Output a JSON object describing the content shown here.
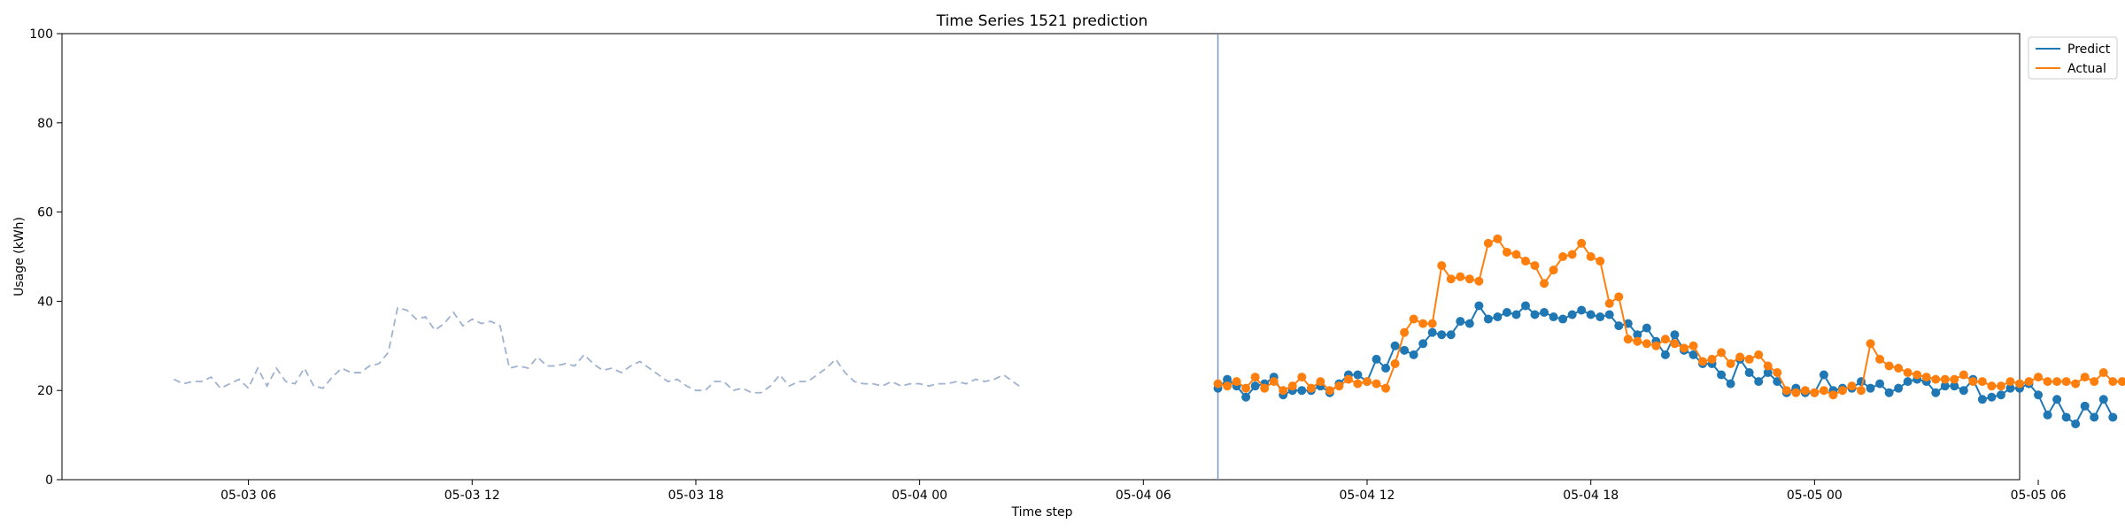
{
  "chart_data": {
    "type": "line",
    "title": "Time Series 1521 prediction",
    "xlabel": "Time step",
    "ylabel": "Usage (kWh)",
    "ylim": [
      0,
      100
    ],
    "yticks": [
      0,
      20,
      40,
      60,
      80,
      100
    ],
    "xticks": [
      "05-03 06",
      "05-03 12",
      "05-03 18",
      "05-04 00",
      "05-04 06",
      "05-04 12",
      "05-04 18",
      "05-05 00",
      "05-05 06"
    ],
    "xlim_hours": [
      -3.0,
      49.5
    ],
    "grid": false,
    "legend_position": "top-right",
    "forecast_start_hour": 28.0,
    "history": {
      "color": "#9fb2d0",
      "style": "dashed",
      "start_hour": 0,
      "step_hours": 0.25,
      "values": [
        22.5,
        21.5,
        22,
        22,
        23,
        20.5,
        21.5,
        22.5,
        20.5,
        25,
        21,
        25,
        22,
        21.5,
        25,
        21,
        20.5,
        23,
        25,
        24,
        24,
        25.5,
        26,
        28.5,
        38.5,
        38,
        36,
        36.5,
        33.5,
        35,
        37.5,
        34.5,
        36,
        35,
        35.5,
        34.5,
        25,
        25.5,
        25,
        27.5,
        25.5,
        25.5,
        26,
        25.5,
        28,
        26,
        24.5,
        25,
        24,
        25.5,
        26.5,
        25,
        23.5,
        22,
        22.5,
        21,
        20,
        20,
        22,
        22,
        20,
        20.5,
        19.5,
        19.5,
        21,
        23.5,
        21,
        22,
        22,
        23.5,
        25,
        27,
        24,
        22,
        21.5,
        21.5,
        21,
        22,
        21,
        21.5,
        21.5,
        21,
        21.5,
        21.5,
        22,
        21.5,
        22.5,
        22,
        22.5,
        23.5,
        22,
        20.5
      ]
    },
    "series": [
      {
        "name": "Predict",
        "color": "#1f77b4",
        "start_hour": 28,
        "step_hours": 0.25,
        "values": [
          20.5,
          22.5,
          21,
          18.5,
          21,
          21.5,
          23,
          19,
          20,
          20,
          20,
          21,
          19.5,
          21.5,
          23.5,
          23.5,
          22,
          27,
          25,
          30,
          29,
          28,
          30.5,
          33,
          32.5,
          32.5,
          35.5,
          35,
          39,
          36,
          36.5,
          37.5,
          37,
          39,
          37,
          37.5,
          36.5,
          36,
          37,
          38,
          37,
          36.5,
          37,
          34.5,
          35,
          32.5,
          34,
          31,
          28,
          32.5,
          29,
          28,
          26,
          26,
          23.5,
          21.5,
          27,
          24,
          22,
          24,
          22,
          19.5,
          20.5,
          19.5,
          19.5,
          23.5,
          20,
          20.5,
          20.5,
          22,
          20.5,
          21.5,
          19.5,
          20.5,
          22,
          22.5,
          22,
          19.5,
          21,
          21,
          20,
          22.5,
          18,
          18.5,
          19,
          20.5,
          20.5,
          21.5,
          19,
          14.5,
          18,
          14,
          12.5,
          16.5,
          14,
          18,
          14
        ]
      },
      {
        "name": "Actual",
        "color": "#ff7f0e",
        "start_hour": 28,
        "step_hours": 0.25,
        "values": [
          21.5,
          21,
          22,
          20.5,
          23,
          20.5,
          22,
          20,
          21,
          23,
          20.5,
          22,
          20,
          21,
          22.5,
          21.5,
          22,
          21.5,
          20.5,
          26,
          33,
          36,
          35,
          35,
          48,
          45,
          45.5,
          45,
          44.5,
          53,
          54,
          51,
          50.5,
          49,
          48,
          44,
          47,
          50,
          50.5,
          53,
          50,
          49,
          39.5,
          41,
          31.5,
          31,
          30.5,
          30,
          31.5,
          30.5,
          29.5,
          30,
          26.5,
          27,
          28.5,
          26,
          27.5,
          27,
          28,
          25.5,
          24,
          20,
          19.5,
          20,
          19.5,
          20,
          19,
          20,
          21,
          20,
          30.5,
          27,
          25.5,
          25,
          24,
          23.5,
          23,
          22.5,
          22.5,
          22.5,
          23.5,
          22,
          22,
          21,
          21,
          22,
          21.5,
          22,
          23,
          22,
          22,
          22,
          21.5,
          23,
          22,
          24,
          22,
          22
        ]
      }
    ]
  }
}
